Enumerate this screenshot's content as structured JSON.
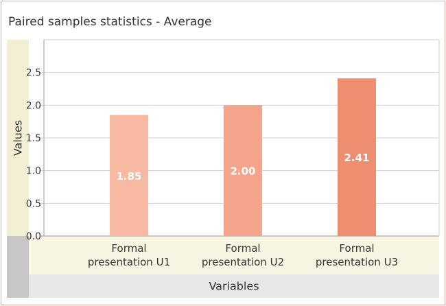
{
  "chart_data": {
    "type": "bar",
    "title": "Paired samples statistics - Average",
    "xlabel": "Variables",
    "ylabel": "Values",
    "categories": [
      [
        "Formal",
        "presentation U1"
      ],
      [
        "Formal",
        "presentation U2"
      ],
      [
        "Formal",
        "presentation U3"
      ]
    ],
    "values": [
      1.85,
      2.0,
      2.41
    ],
    "value_labels": [
      "1.85",
      "2.00",
      "2.41"
    ],
    "yticks": [
      "0.0",
      "0.5",
      "1.0",
      "1.5",
      "2.0",
      "2.5"
    ],
    "ylim": [
      0,
      3.0
    ],
    "grid": true,
    "colors": [
      "#f7b9a1",
      "#f3a48a",
      "#ee8e71"
    ],
    "value_label_color": "#ffffff"
  }
}
